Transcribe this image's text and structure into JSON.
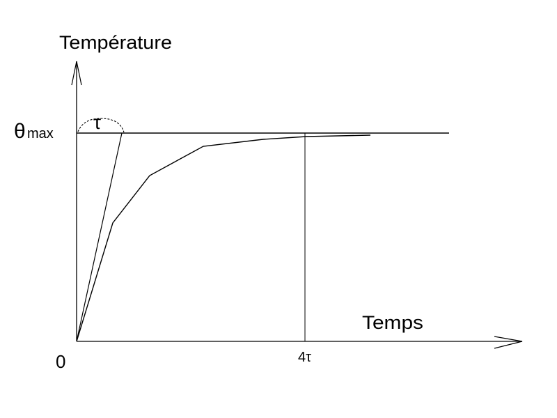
{
  "y_axis_label": "Température",
  "x_axis_label": "Temps",
  "origin_label": "0",
  "theta_max": {
    "symbol": "θ",
    "subscript": "max"
  },
  "tau_label": "τ",
  "four_tau_label": "4τ"
}
